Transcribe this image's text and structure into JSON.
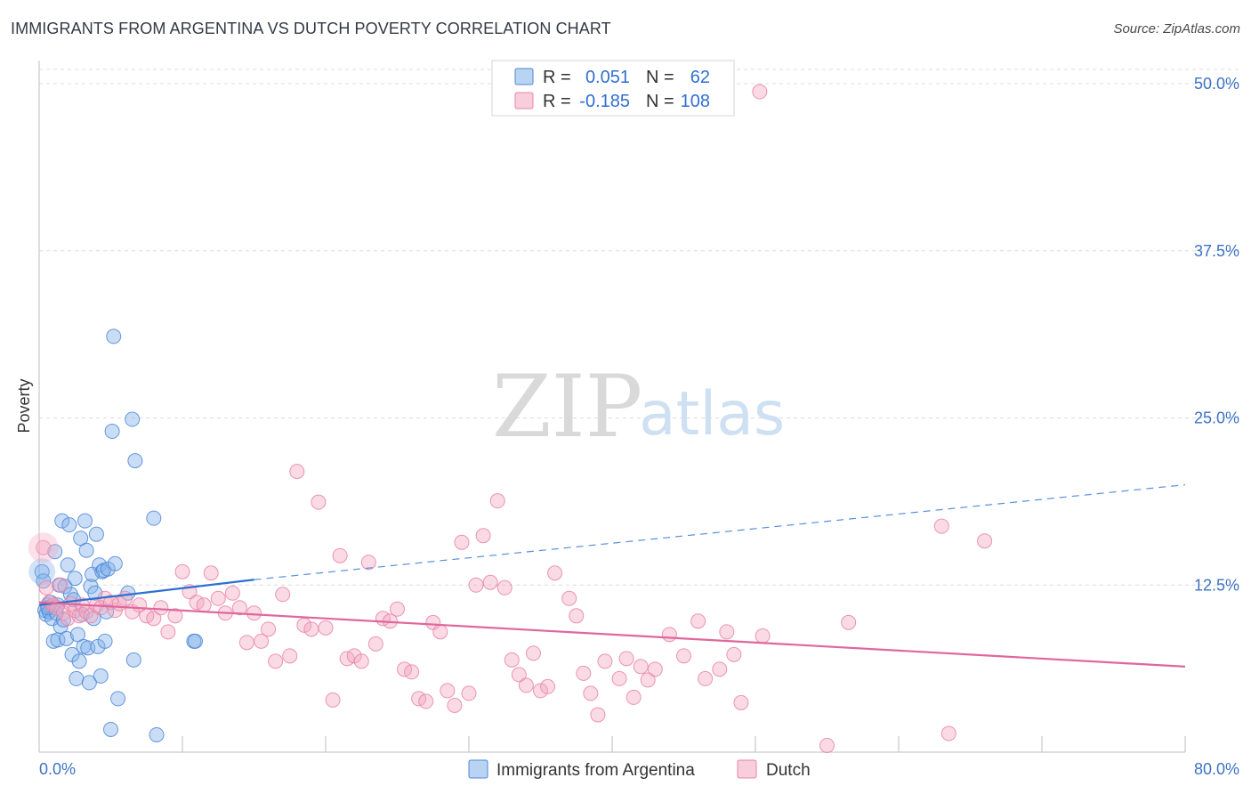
{
  "title": "IMMIGRANTS FROM ARGENTINA VS DUTCH POVERTY CORRELATION CHART",
  "source": "Source: ZipAtlas.com",
  "watermark": {
    "part1": "ZIP",
    "part2": "atlas"
  },
  "legend": {
    "rows": [
      {
        "r_label": "R =",
        "r_value": "0.051",
        "n_label": "N =",
        "n_value": "62",
        "color": "#7fb0ea"
      },
      {
        "r_label": "R =",
        "r_value": "-0.185",
        "n_label": "N =",
        "n_value": "108",
        "color": "#f3a6c0"
      }
    ]
  },
  "chart_data": {
    "type": "scatter",
    "title": "IMMIGRANTS FROM ARGENTINA VS DUTCH POVERTY CORRELATION CHART",
    "xlabel": "",
    "ylabel": "Poverty",
    "xlim": [
      0,
      80
    ],
    "ylim": [
      0,
      52
    ],
    "x_tick_labels": [
      "0.0%",
      "80.0%"
    ],
    "y_ticks": [
      12.5,
      25.0,
      37.5,
      50.0
    ],
    "y_tick_labels": [
      "12.5%",
      "25.0%",
      "37.5%",
      "50.0%"
    ],
    "grid": true,
    "legend_position": "bottom",
    "series": [
      {
        "name": "Immigrants from Argentina",
        "color": "#7fb0ea",
        "stroke": "#4f86d6",
        "trend": {
          "x_start": 0,
          "y_start": 11.0,
          "x_solid_end": 15,
          "y_solid_end": 12.9,
          "x_end": 80,
          "y_end": 20.0
        },
        "points": [
          [
            0.2,
            13.5
          ],
          [
            0.3,
            12.8
          ],
          [
            0.4,
            10.6
          ],
          [
            0.5,
            10.3
          ],
          [
            0.6,
            11.0
          ],
          [
            0.7,
            10.5
          ],
          [
            0.8,
            11.2
          ],
          [
            0.9,
            10.0
          ],
          [
            1.0,
            8.3
          ],
          [
            1.1,
            15.0
          ],
          [
            1.2,
            10.4
          ],
          [
            1.3,
            8.4
          ],
          [
            1.4,
            12.5
          ],
          [
            1.5,
            9.4
          ],
          [
            1.6,
            17.3
          ],
          [
            1.7,
            9.9
          ],
          [
            1.8,
            12.4
          ],
          [
            1.9,
            8.5
          ],
          [
            2.0,
            14.0
          ],
          [
            2.1,
            17.0
          ],
          [
            2.2,
            11.8
          ],
          [
            2.3,
            7.3
          ],
          [
            2.4,
            11.4
          ],
          [
            2.5,
            13.0
          ],
          [
            2.6,
            5.5
          ],
          [
            2.7,
            8.8
          ],
          [
            2.8,
            6.8
          ],
          [
            2.9,
            16.0
          ],
          [
            3.0,
            10.3
          ],
          [
            3.1,
            7.9
          ],
          [
            3.2,
            17.3
          ],
          [
            3.3,
            15.1
          ],
          [
            3.4,
            7.8
          ],
          [
            3.5,
            5.2
          ],
          [
            3.6,
            12.4
          ],
          [
            3.7,
            13.3
          ],
          [
            3.8,
            10.0
          ],
          [
            3.9,
            11.9
          ],
          [
            4.0,
            16.3
          ],
          [
            4.1,
            7.9
          ],
          [
            4.2,
            14.0
          ],
          [
            4.3,
            5.7
          ],
          [
            4.4,
            13.5
          ],
          [
            4.5,
            13.6
          ],
          [
            4.6,
            8.3
          ],
          [
            4.7,
            10.5
          ],
          [
            4.8,
            13.7
          ],
          [
            5.0,
            1.7
          ],
          [
            5.1,
            24.0
          ],
          [
            5.2,
            31.1
          ],
          [
            5.3,
            14.1
          ],
          [
            5.5,
            4.0
          ],
          [
            6.2,
            11.9
          ],
          [
            6.5,
            24.9
          ],
          [
            6.6,
            6.9
          ],
          [
            6.7,
            21.8
          ],
          [
            8.0,
            17.5
          ],
          [
            8.2,
            1.3
          ],
          [
            10.8,
            8.3
          ],
          [
            10.9,
            8.3
          ],
          [
            0.6,
            10.8
          ],
          [
            1.3,
            11.0
          ]
        ]
      },
      {
        "name": "Dutch",
        "color": "#f3a6c0",
        "stroke": "#e884a6",
        "trend": {
          "x_start": 0,
          "y_start": 11.2,
          "x_end": 80,
          "y_end": 6.4
        },
        "points": [
          [
            0.3,
            15.3
          ],
          [
            0.5,
            12.3
          ],
          [
            0.7,
            11.2
          ],
          [
            1.0,
            11.0
          ],
          [
            1.2,
            10.8
          ],
          [
            1.5,
            12.5
          ],
          [
            1.7,
            10.4
          ],
          [
            2.0,
            10.0
          ],
          [
            2.2,
            11.1
          ],
          [
            2.5,
            10.6
          ],
          [
            2.8,
            10.2
          ],
          [
            3.0,
            11.0
          ],
          [
            3.3,
            10.5
          ],
          [
            3.6,
            10.2
          ],
          [
            4.0,
            11.0
          ],
          [
            4.3,
            10.8
          ],
          [
            4.6,
            11.5
          ],
          [
            5.0,
            11.2
          ],
          [
            5.3,
            10.6
          ],
          [
            5.6,
            11.1
          ],
          [
            6.0,
            11.5
          ],
          [
            6.5,
            10.5
          ],
          [
            7.0,
            11.0
          ],
          [
            7.5,
            10.2
          ],
          [
            8.0,
            10.0
          ],
          [
            8.5,
            10.8
          ],
          [
            9.0,
            9.0
          ],
          [
            9.5,
            10.2
          ],
          [
            10.0,
            13.5
          ],
          [
            10.5,
            12.0
          ],
          [
            11.0,
            11.2
          ],
          [
            11.5,
            11.0
          ],
          [
            12.0,
            13.4
          ],
          [
            12.5,
            11.5
          ],
          [
            13.0,
            10.4
          ],
          [
            13.5,
            11.9
          ],
          [
            14.0,
            10.8
          ],
          [
            14.5,
            8.2
          ],
          [
            15.0,
            10.4
          ],
          [
            15.5,
            8.3
          ],
          [
            16.0,
            9.2
          ],
          [
            16.5,
            6.8
          ],
          [
            17.0,
            11.8
          ],
          [
            17.5,
            7.2
          ],
          [
            18.0,
            21.0
          ],
          [
            18.5,
            9.5
          ],
          [
            19.0,
            9.2
          ],
          [
            19.5,
            18.7
          ],
          [
            20.0,
            9.3
          ],
          [
            20.5,
            3.9
          ],
          [
            21.0,
            14.7
          ],
          [
            21.5,
            7.0
          ],
          [
            22.0,
            7.2
          ],
          [
            22.5,
            6.8
          ],
          [
            23.0,
            14.2
          ],
          [
            23.5,
            8.1
          ],
          [
            24.0,
            10.0
          ],
          [
            24.5,
            9.8
          ],
          [
            25.0,
            10.7
          ],
          [
            25.5,
            6.2
          ],
          [
            26.0,
            6.0
          ],
          [
            26.5,
            4.0
          ],
          [
            27.0,
            3.8
          ],
          [
            27.5,
            9.7
          ],
          [
            28.0,
            9.0
          ],
          [
            28.5,
            4.6
          ],
          [
            29.0,
            3.5
          ],
          [
            29.5,
            15.7
          ],
          [
            30.0,
            4.4
          ],
          [
            30.5,
            12.5
          ],
          [
            31.0,
            16.2
          ],
          [
            31.5,
            12.7
          ],
          [
            32.0,
            18.8
          ],
          [
            32.5,
            12.3
          ],
          [
            33.0,
            6.9
          ],
          [
            33.5,
            5.8
          ],
          [
            34.0,
            5.0
          ],
          [
            34.5,
            7.4
          ],
          [
            35.0,
            4.6
          ],
          [
            35.5,
            4.9
          ],
          [
            36.0,
            13.4
          ],
          [
            37.0,
            11.5
          ],
          [
            37.5,
            10.2
          ],
          [
            38.0,
            5.9
          ],
          [
            38.5,
            4.4
          ],
          [
            39.0,
            2.8
          ],
          [
            39.5,
            6.8
          ],
          [
            40.5,
            5.5
          ],
          [
            41.0,
            7.0
          ],
          [
            41.5,
            4.1
          ],
          [
            42.0,
            6.4
          ],
          [
            42.5,
            5.4
          ],
          [
            43.0,
            6.2
          ],
          [
            44.0,
            8.8
          ],
          [
            45.0,
            7.2
          ],
          [
            46.0,
            9.8
          ],
          [
            46.5,
            5.5
          ],
          [
            47.5,
            6.2
          ],
          [
            48.0,
            9.0
          ],
          [
            48.5,
            7.3
          ],
          [
            49.0,
            3.7
          ],
          [
            50.5,
            8.7
          ],
          [
            55.0,
            0.5
          ],
          [
            56.5,
            9.7
          ],
          [
            63.0,
            16.9
          ],
          [
            63.5,
            1.4
          ],
          [
            66.0,
            15.8
          ],
          [
            50.3,
            49.4
          ]
        ]
      }
    ]
  }
}
